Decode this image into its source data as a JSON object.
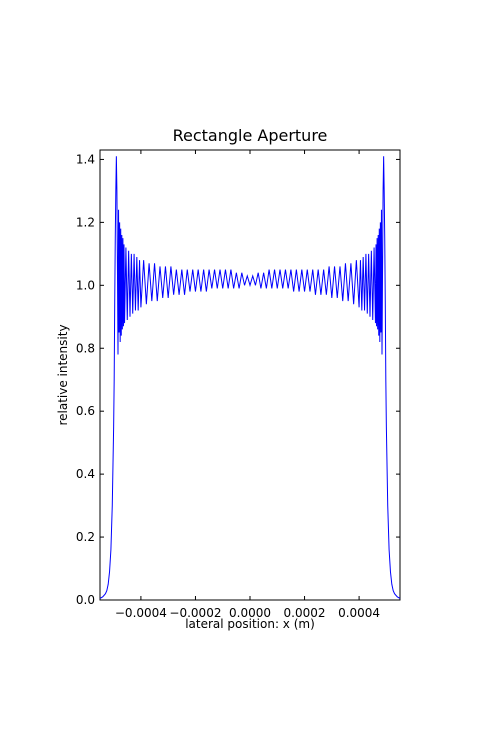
{
  "chart_data": {
    "type": "line",
    "title": "Rectangle Aperture",
    "xlabel": "lateral position: x (m)",
    "ylabel": "relative intensity",
    "xlim": [
      -0.00055,
      0.00055
    ],
    "ylim": [
      0.0,
      1.43
    ],
    "xticks": [
      -0.0004,
      -0.0002,
      0.0,
      0.0002,
      0.0004
    ],
    "xtick_labels": [
      "−0.0004",
      "−0.0002",
      "0.0000",
      "0.0002",
      "0.0004"
    ],
    "yticks": [
      0.0,
      0.2,
      0.4,
      0.6,
      0.8,
      1.0,
      1.2,
      1.4
    ],
    "ytick_labels": [
      "0.0",
      "0.2",
      "0.4",
      "0.6",
      "0.8",
      "1.0",
      "1.2",
      "1.4"
    ],
    "grid": false,
    "series": [
      {
        "color": "#0000ff",
        "x": [
          -0.00055,
          -0.00054,
          -0.00053,
          -0.000525,
          -0.00052,
          -0.000515,
          -0.00051,
          -0.000505,
          -0.0005,
          -0.000498,
          -0.000496,
          -0.000494,
          -0.000492,
          -0.00049,
          -0.000488,
          -0.000486,
          -0.000484,
          -0.000482,
          -0.00048,
          -0.000478,
          -0.000476,
          -0.000474,
          -0.000472,
          -0.00047,
          -0.000468,
          -0.000466,
          -0.000464,
          -0.000462,
          -0.00046,
          -0.000455,
          -0.00045,
          -0.000445,
          -0.00044,
          -0.000435,
          -0.00043,
          -0.000425,
          -0.00042,
          -0.000415,
          -0.00041,
          -0.000405,
          -0.0004,
          -0.00039,
          -0.00038,
          -0.00037,
          -0.00036,
          -0.00035,
          -0.00034,
          -0.00033,
          -0.00032,
          -0.00031,
          -0.0003,
          -0.00029,
          -0.00028,
          -0.00027,
          -0.00026,
          -0.00025,
          -0.00024,
          -0.00023,
          -0.00022,
          -0.00021,
          -0.0002,
          -0.00019,
          -0.00018,
          -0.00017,
          -0.00016,
          -0.00015,
          -0.00014,
          -0.00013,
          -0.00012,
          -0.00011,
          -0.0001,
          -9e-05,
          -8e-05,
          -7e-05,
          -6e-05,
          -5e-05,
          -4e-05,
          -3e-05,
          -2e-05,
          -1e-05,
          0.0,
          1e-05,
          2e-05,
          3e-05,
          4e-05,
          5e-05,
          6e-05,
          7e-05,
          8e-05,
          9e-05,
          0.0001,
          0.00011,
          0.00012,
          0.00013,
          0.00014,
          0.00015,
          0.00016,
          0.00017,
          0.00018,
          0.00019,
          0.0002,
          0.00021,
          0.00022,
          0.00023,
          0.00024,
          0.00025,
          0.00026,
          0.00027,
          0.00028,
          0.00029,
          0.0003,
          0.00031,
          0.00032,
          0.00033,
          0.00034,
          0.00035,
          0.00036,
          0.00037,
          0.00038,
          0.00039,
          0.0004,
          0.000405,
          0.00041,
          0.000415,
          0.00042,
          0.000425,
          0.00043,
          0.000435,
          0.00044,
          0.000445,
          0.00045,
          0.000455,
          0.00046,
          0.000462,
          0.000464,
          0.000466,
          0.000468,
          0.00047,
          0.000472,
          0.000474,
          0.000476,
          0.000478,
          0.00048,
          0.000482,
          0.000484,
          0.000486,
          0.000488,
          0.00049,
          0.000492,
          0.000494,
          0.000496,
          0.000498,
          0.0005,
          0.000505,
          0.00051,
          0.000515,
          0.00052,
          0.000525,
          0.00053,
          0.00054,
          0.00055
        ],
        "y": [
          0.005,
          0.01,
          0.02,
          0.03,
          0.05,
          0.09,
          0.16,
          0.3,
          0.55,
          0.7,
          0.95,
          1.15,
          1.3,
          1.41,
          1.3,
          1.05,
          0.78,
          1.24,
          0.85,
          1.2,
          0.82,
          1.18,
          0.84,
          1.16,
          0.86,
          1.15,
          0.87,
          1.13,
          0.88,
          1.12,
          0.89,
          1.11,
          0.9,
          1.1,
          0.91,
          1.1,
          0.92,
          1.09,
          0.92,
          1.08,
          0.93,
          1.08,
          0.94,
          1.07,
          0.95,
          1.07,
          0.95,
          1.06,
          0.96,
          1.06,
          0.96,
          1.06,
          0.97,
          1.05,
          0.97,
          1.05,
          0.97,
          1.05,
          0.98,
          1.05,
          0.98,
          1.05,
          0.98,
          1.05,
          0.98,
          1.05,
          0.99,
          1.05,
          0.99,
          1.05,
          0.99,
          1.05,
          0.99,
          1.05,
          0.99,
          1.04,
          0.99,
          1.04,
          1.0,
          1.03,
          1.0,
          1.03,
          1.0,
          1.04,
          0.99,
          1.04,
          0.99,
          1.05,
          0.99,
          1.05,
          0.99,
          1.05,
          0.99,
          1.05,
          0.99,
          1.05,
          0.98,
          1.05,
          0.98,
          1.05,
          0.98,
          1.05,
          0.98,
          1.05,
          0.97,
          1.05,
          0.97,
          1.05,
          0.97,
          1.06,
          0.96,
          1.06,
          0.96,
          1.06,
          0.95,
          1.07,
          0.95,
          1.07,
          0.94,
          1.08,
          0.93,
          1.08,
          0.92,
          1.09,
          0.92,
          1.1,
          0.91,
          1.1,
          0.9,
          1.11,
          0.89,
          1.12,
          0.88,
          1.13,
          0.87,
          1.15,
          0.86,
          1.16,
          0.84,
          1.18,
          0.82,
          1.2,
          0.85,
          1.24,
          0.78,
          1.05,
          1.3,
          1.41,
          1.3,
          1.15,
          0.95,
          0.7,
          0.55,
          0.3,
          0.16,
          0.09,
          0.05,
          0.03,
          0.02,
          0.01,
          0.005
        ]
      }
    ]
  }
}
